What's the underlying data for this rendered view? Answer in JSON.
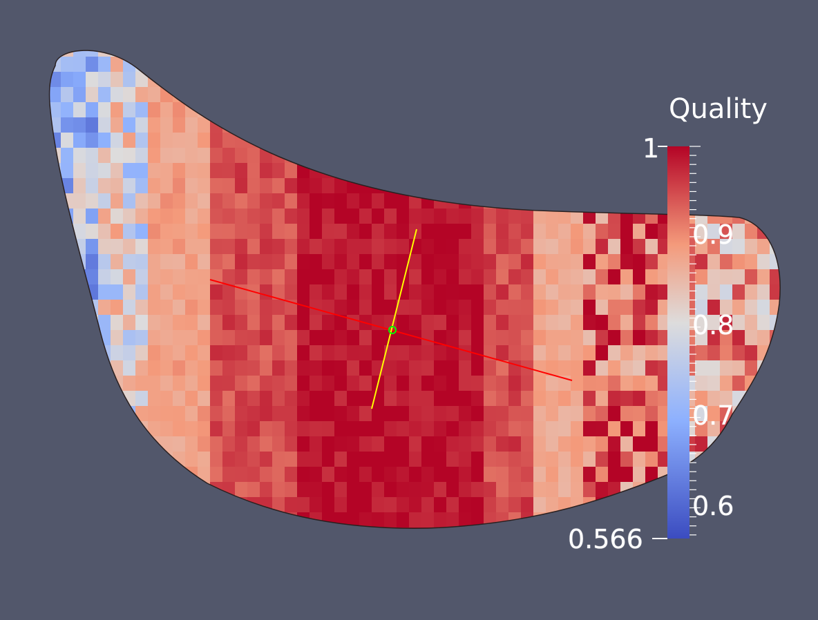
{
  "scalar_bar": {
    "title": "Quality",
    "range": [
      0.566,
      1
    ],
    "max_label": "1",
    "min_label": "0.566",
    "ticks": [
      {
        "value": 0.9,
        "label": "0.9"
      },
      {
        "value": 0.8,
        "label": "0.8"
      },
      {
        "value": 0.7,
        "label": "0.7"
      },
      {
        "value": 0.6,
        "label": "0.6"
      }
    ],
    "colormap": [
      "#3b4cc0",
      "#8db0fe",
      "#dddcdc",
      "#f49a7b",
      "#b40426"
    ]
  },
  "colors": {
    "background": "#52576b",
    "axis_x": "#ff0000",
    "axis_y": "#ffff00",
    "axis_origin": "#00ff00"
  }
}
